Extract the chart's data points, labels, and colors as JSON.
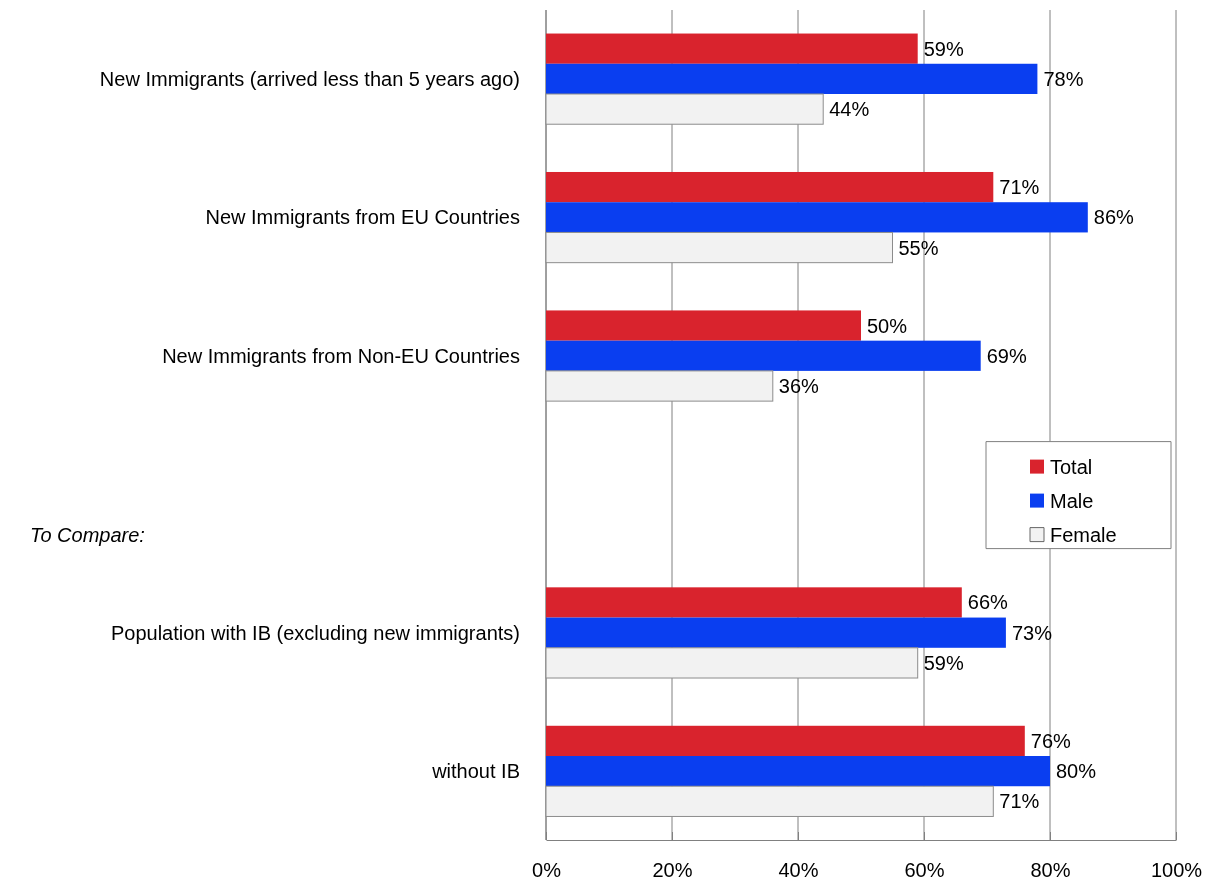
{
  "chart_data": {
    "type": "bar",
    "orientation": "horizontal",
    "categories": [
      "New Immigrants (arrived less than 5 years ago)",
      "New Immigrants from EU Countries",
      "New Immigrants from Non-EU Countries",
      null,
      "Population with IB (excluding new immigrants)",
      "without  IB"
    ],
    "series": [
      {
        "name": "Total",
        "color": "#d9232d",
        "values": [
          59,
          71,
          50,
          null,
          66,
          76
        ],
        "value_labels": [
          "59%",
          "71%",
          "50%",
          null,
          "66%",
          "76%"
        ]
      },
      {
        "name": "Male",
        "color": "#0a3ef0",
        "values": [
          78,
          86,
          69,
          null,
          73,
          80
        ],
        "value_labels": [
          "78%",
          "86%",
          "69%",
          null,
          "73%",
          "80%"
        ]
      },
      {
        "name": "Female",
        "color": "#f2f2f2",
        "values": [
          44,
          55,
          36,
          null,
          59,
          71
        ],
        "value_labels": [
          "44%",
          "55%",
          "36%",
          null,
          "59%",
          "71%"
        ]
      }
    ],
    "xlim": [
      0,
      100
    ],
    "xticks": [
      {
        "value": 0,
        "label": "0%"
      },
      {
        "value": 20,
        "label": "20%"
      },
      {
        "value": 40,
        "label": "40%"
      },
      {
        "value": 60,
        "label": "60%"
      },
      {
        "value": 80,
        "label": "80%"
      },
      {
        "value": 100,
        "label": "100%"
      }
    ],
    "grid": "x",
    "legend": "right",
    "annotations": [
      "To Compare:"
    ]
  }
}
